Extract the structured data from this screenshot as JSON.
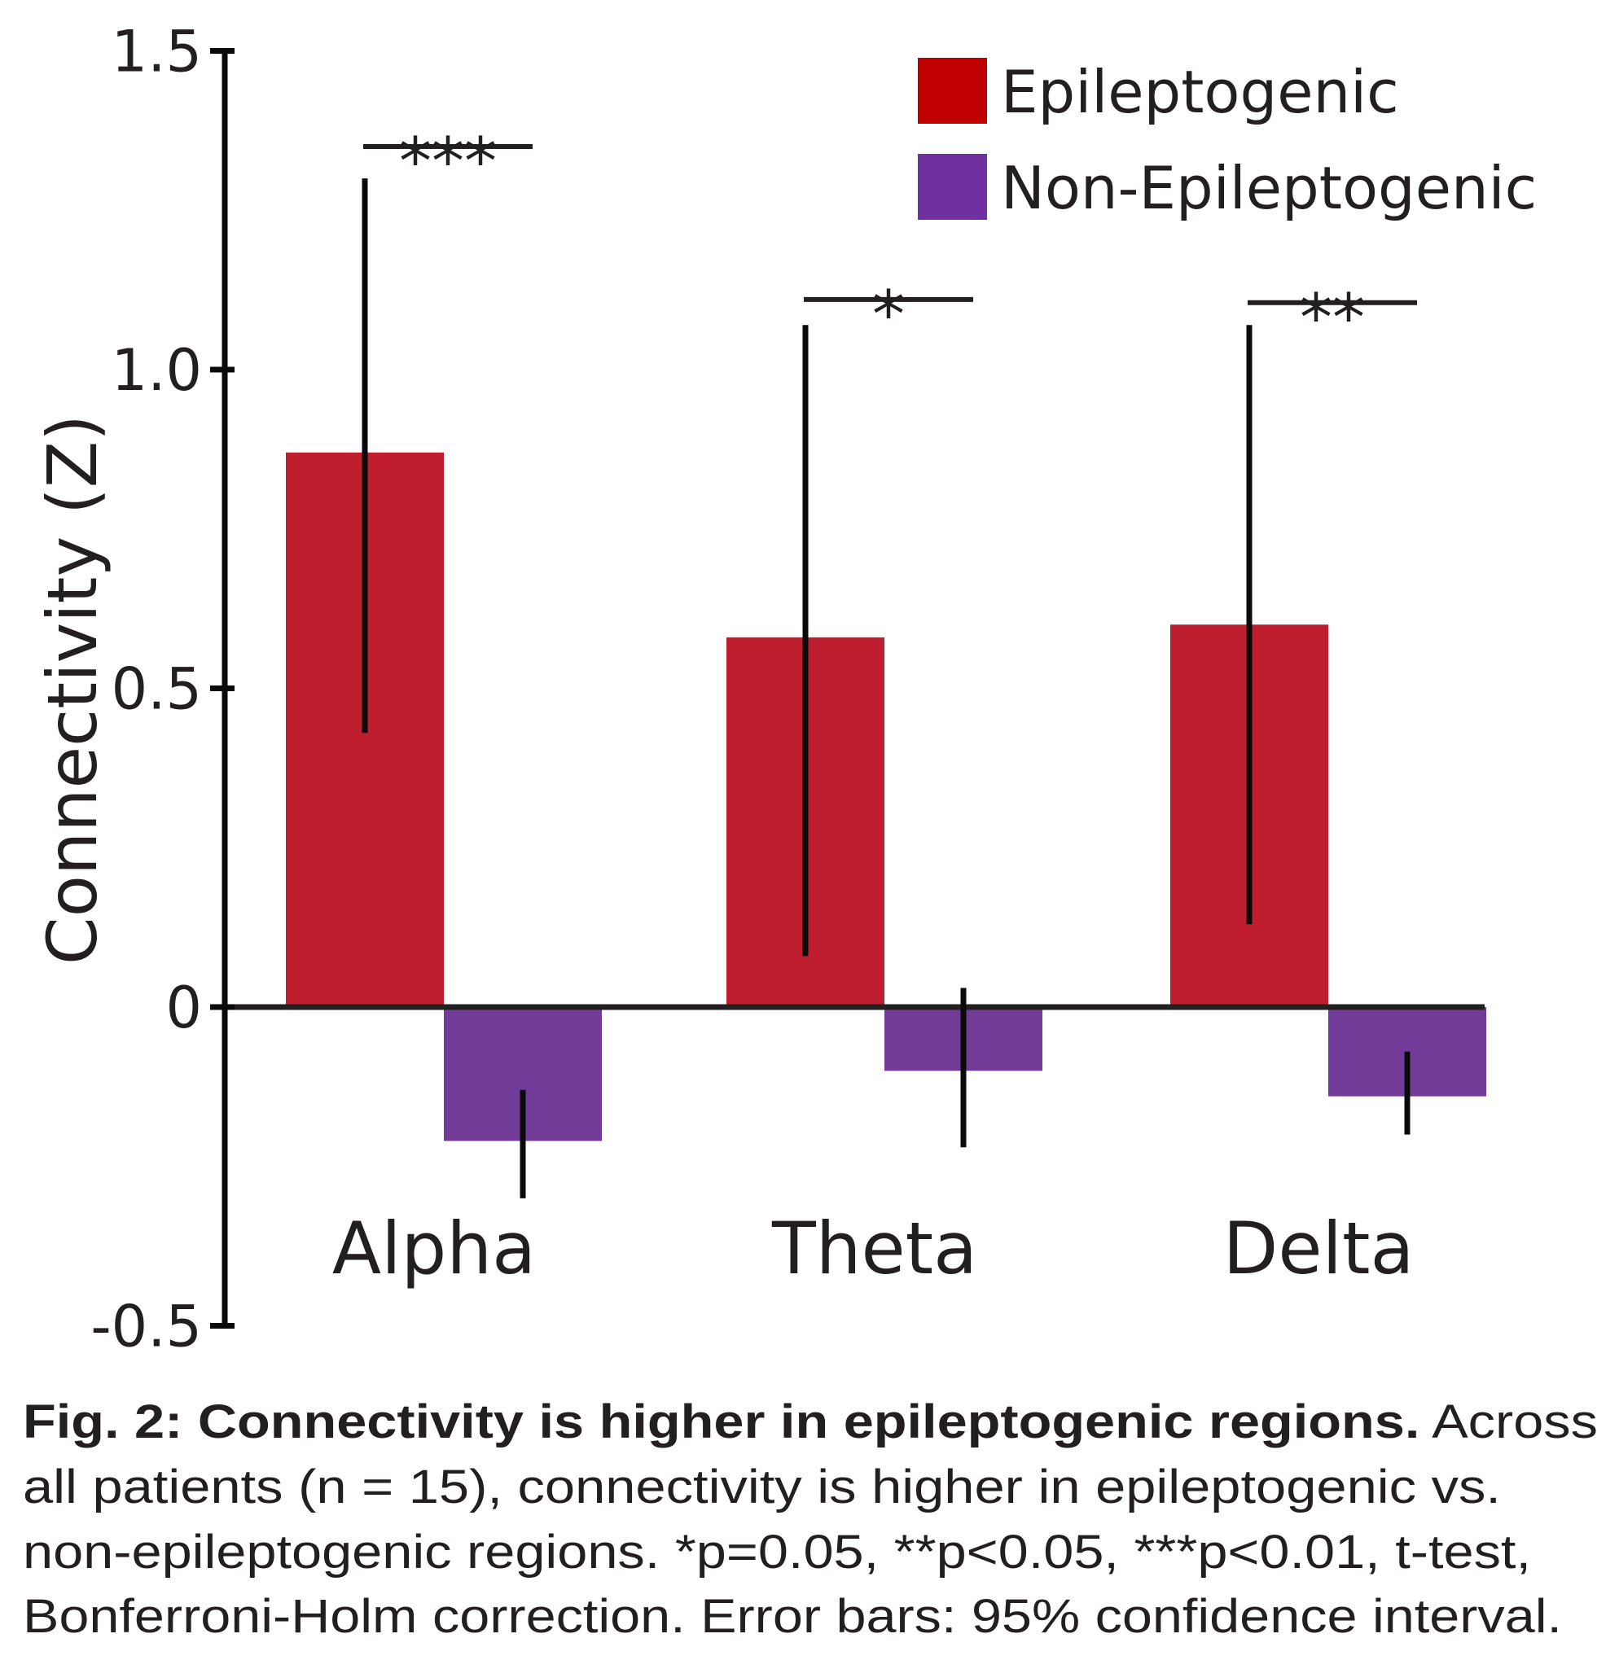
{
  "chart_data": {
    "type": "bar",
    "title": "",
    "xlabel": "",
    "ylabel": "Connectivity (Z)",
    "ylim": [
      -0.5,
      1.5
    ],
    "yticks": [
      {
        "value": 1.5,
        "label": "1.5"
      },
      {
        "value": 1.0,
        "label": "1.0"
      },
      {
        "value": 0.5,
        "label": "0.5"
      },
      {
        "value": 0,
        "label": "0"
      },
      {
        "value": -0.5,
        "label": "-0.5"
      }
    ],
    "categories": [
      "Alpha",
      "Theta",
      "Delta"
    ],
    "series": [
      {
        "name": "Epileptogenic",
        "color": "#be1e2d",
        "legend_color": "#c00000",
        "values": [
          0.87,
          0.58,
          0.6
        ],
        "error_low": [
          0.43,
          0.08,
          0.13
        ],
        "error_high": [
          1.3,
          1.07,
          1.07
        ]
      },
      {
        "name": "Non-Epileptogenic",
        "color": "#713b97",
        "legend_color": "#7030a0",
        "values": [
          -0.21,
          -0.1,
          -0.14
        ],
        "error_low": [
          -0.3,
          -0.22,
          -0.2
        ],
        "error_high": [
          -0.13,
          0.03,
          -0.07
        ]
      }
    ],
    "significance": [
      {
        "category": "Alpha",
        "label": "***",
        "level": 1.35
      },
      {
        "category": "Theta",
        "label": "*",
        "level": 1.11
      },
      {
        "category": "Delta",
        "label": "**",
        "level": 1.105
      }
    ],
    "grid": false,
    "legend_position": "top-right"
  },
  "caption": {
    "lines": [
      {
        "bold": "Fig. 2: Connectivity is higher in epileptogenic regions.",
        "normal": " Across"
      },
      {
        "bold": "",
        "normal": "all patients (n = 15), connectivity is higher in epileptogenic vs."
      },
      {
        "bold": "",
        "normal": "non-epileptogenic regions. *p=0.05, **p<0.05, ***p<0.01, t-test,"
      },
      {
        "bold": "",
        "normal": "Bonferroni-Holm correction. Error bars: 95% confidence interval."
      }
    ]
  }
}
